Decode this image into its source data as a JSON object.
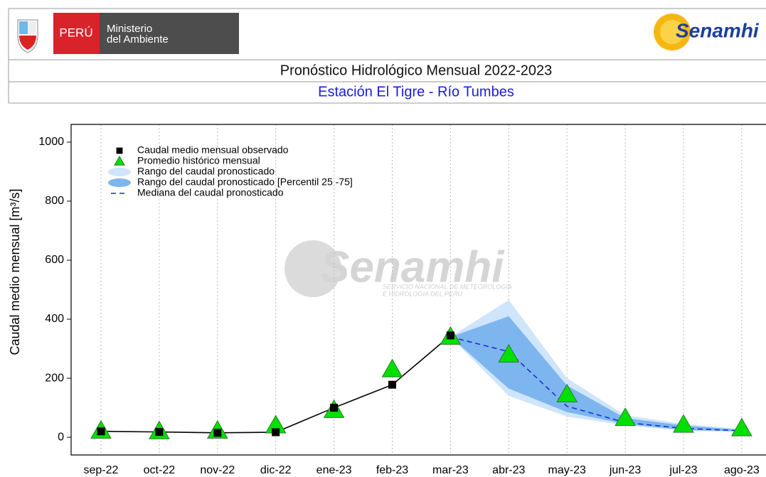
{
  "header": {
    "country": "PERÚ",
    "ministry_line1": "Ministerio",
    "ministry_line2": "del Ambiente",
    "brand": "Senamhi"
  },
  "chart_data": {
    "type": "line",
    "title": "Pronóstico Hidrológico Mensual 2022-2023",
    "subtitle": "Estación El Tigre - Río Tumbes",
    "y_label": "Caudal medio mensual  [m³/s]",
    "watermark": {
      "brand": "Senamhi",
      "line1": "SERVICIO NACIONAL DE METEOROLOGIA",
      "line2": "E HIDROLOGIA DEL PERU"
    },
    "categories": [
      "sep-22",
      "oct-22",
      "nov-22",
      "dic-22",
      "ene-23",
      "feb-23",
      "mar-23",
      "abr-23",
      "may-23",
      "jun-23",
      "jul-23",
      "ago-23"
    ],
    "ylim": [
      -60,
      1060
    ],
    "yticks": [
      0,
      200,
      400,
      600,
      800,
      1000
    ],
    "grid": true,
    "legend": "top-left",
    "series": [
      {
        "name": "Caudal medio mensual observado",
        "color": "#000000",
        "marker": "square",
        "line": "solid",
        "values": [
          20,
          18,
          15,
          17,
          100,
          178,
          345,
          null,
          null,
          null,
          null,
          null
        ]
      },
      {
        "name": "Promedio histórico mensual",
        "color": "#00e000",
        "marker": "triangle",
        "values": [
          22,
          20,
          22,
          40,
          92,
          230,
          340,
          280,
          145,
          65,
          42,
          30
        ]
      },
      {
        "name": "Rango del caudal pronosticado",
        "color": "#cfe5fb",
        "band": true,
        "lower": [
          null,
          null,
          null,
          null,
          null,
          null,
          340,
          140,
          70,
          40,
          22,
          18
        ],
        "upper": [
          null,
          null,
          null,
          null,
          null,
          null,
          340,
          465,
          200,
          75,
          45,
          28
        ]
      },
      {
        "name": "Rango del caudal pronosticado [Percentil 25 -75]",
        "color": "#7db5ef",
        "band": true,
        "lower": [
          null,
          null,
          null,
          null,
          null,
          null,
          340,
          165,
          85,
          45,
          25,
          20
        ],
        "upper": [
          null,
          null,
          null,
          null,
          null,
          null,
          340,
          410,
          175,
          65,
          40,
          25
        ]
      },
      {
        "name": "Mediana del caudal pronosticado",
        "color": "#1a2ed6",
        "line": "dashed",
        "values": [
          null,
          null,
          null,
          null,
          null,
          null,
          340,
          290,
          105,
          50,
          30,
          22
        ]
      }
    ]
  }
}
